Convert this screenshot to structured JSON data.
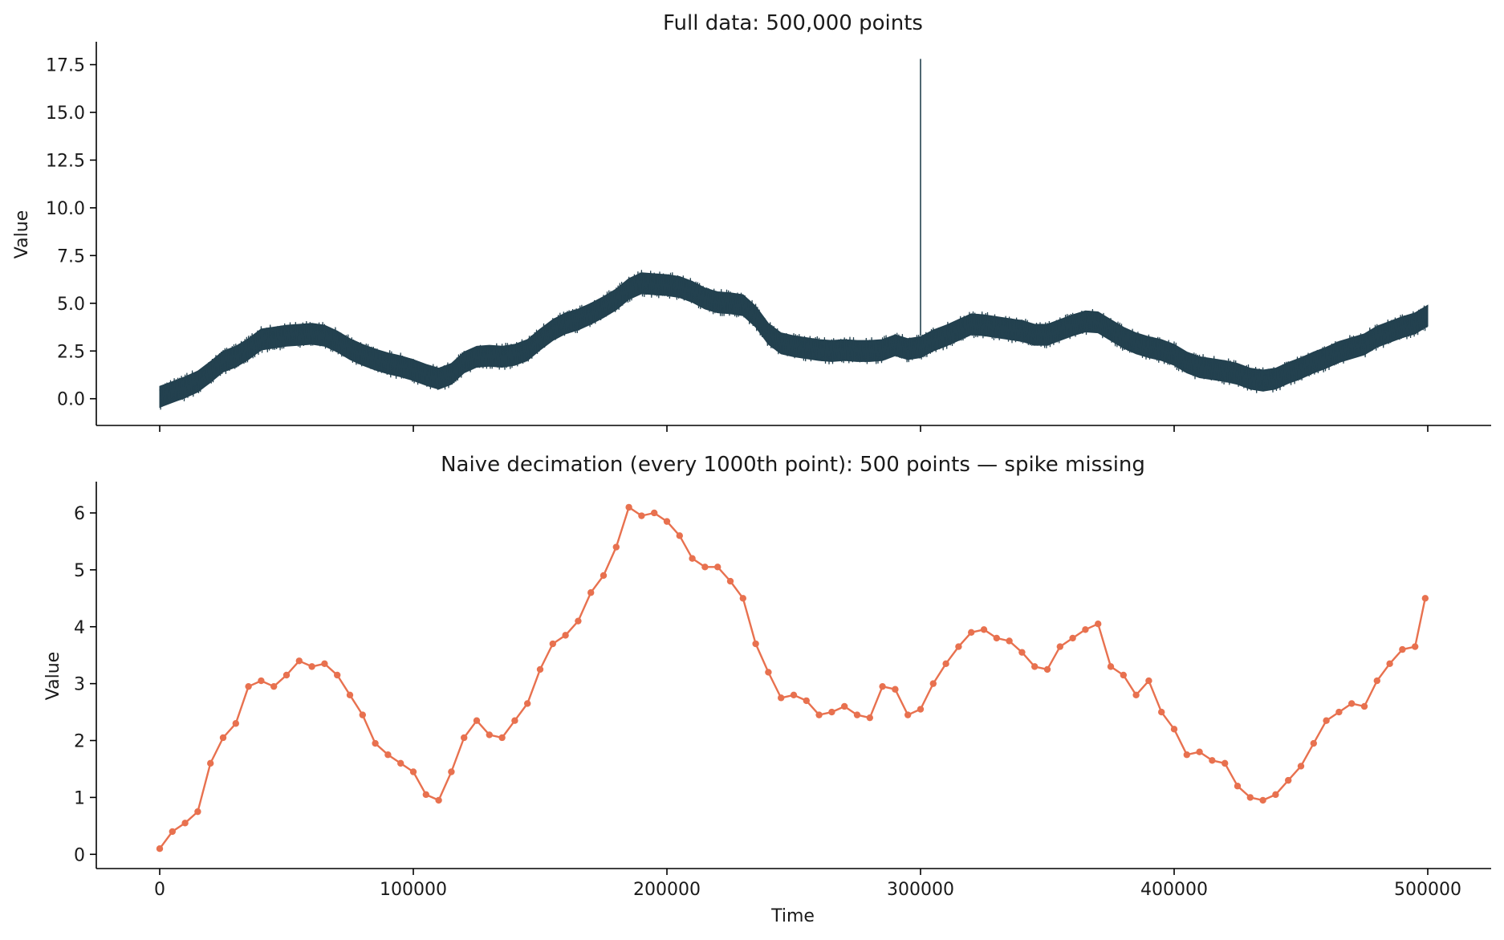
{
  "chart_data": [
    {
      "type": "line",
      "title": "Full data: 500,000 points",
      "xlabel": "",
      "ylabel": "Value",
      "xlim": [
        -25000,
        525000
      ],
      "ylim": [
        -1.4,
        18.7
      ],
      "yticks": [
        0.0,
        2.5,
        5.0,
        7.5,
        10.0,
        12.5,
        15.0,
        17.5
      ],
      "ytick_labels": [
        "0.0",
        "2.5",
        "5.0",
        "7.5",
        "10.0",
        "12.5",
        "15.0",
        "17.5"
      ],
      "xticks": [
        0,
        100000,
        200000,
        300000,
        400000,
        500000
      ],
      "xtick_labels": [
        "",
        "",
        "",
        "",
        "",
        ""
      ],
      "grid": false,
      "color": "#23414f",
      "series": [
        {
          "x": [
            0,
            5000,
            10000,
            15000,
            20000,
            25000,
            30000,
            35000,
            40000,
            45000,
            50000,
            55000,
            60000,
            65000,
            70000,
            75000,
            80000,
            85000,
            90000,
            95000,
            100000,
            105000,
            110000,
            115000,
            120000,
            125000,
            130000,
            135000,
            140000,
            145000,
            150000,
            155000,
            160000,
            165000,
            170000,
            175000,
            180000,
            185000,
            190000,
            195000,
            200000,
            205000,
            210000,
            215000,
            220000,
            225000,
            230000,
            235000,
            240000,
            245000,
            250000,
            255000,
            260000,
            265000,
            270000,
            275000,
            280000,
            285000,
            290000,
            295000,
            300000,
            305000,
            310000,
            315000,
            320000,
            325000,
            330000,
            335000,
            340000,
            345000,
            350000,
            355000,
            360000,
            365000,
            370000,
            375000,
            380000,
            385000,
            390000,
            395000,
            400000,
            405000,
            410000,
            415000,
            420000,
            425000,
            430000,
            435000,
            440000,
            445000,
            450000,
            455000,
            460000,
            465000,
            470000,
            475000,
            480000,
            485000,
            490000,
            495000,
            499999
          ],
          "y": [
            0.1,
            0.35,
            0.6,
            0.9,
            1.4,
            1.95,
            2.2,
            2.6,
            3.1,
            3.2,
            3.3,
            3.35,
            3.4,
            3.3,
            3.0,
            2.6,
            2.3,
            2.05,
            1.85,
            1.7,
            1.5,
            1.25,
            1.05,
            1.3,
            1.9,
            2.2,
            2.25,
            2.2,
            2.3,
            2.55,
            3.1,
            3.6,
            3.95,
            4.15,
            4.45,
            4.8,
            5.2,
            5.75,
            6.05,
            6.0,
            5.95,
            5.85,
            5.6,
            5.25,
            5.05,
            5.0,
            4.9,
            4.3,
            3.4,
            2.9,
            2.75,
            2.65,
            2.55,
            2.5,
            2.55,
            2.5,
            2.5,
            2.55,
            2.8,
            2.6,
            2.7,
            3.05,
            3.3,
            3.6,
            3.9,
            3.85,
            3.75,
            3.65,
            3.55,
            3.35,
            3.35,
            3.6,
            3.85,
            4.05,
            4.0,
            3.6,
            3.2,
            2.9,
            2.7,
            2.55,
            2.3,
            1.9,
            1.65,
            1.55,
            1.45,
            1.3,
            1.05,
            0.95,
            1.05,
            1.35,
            1.6,
            1.9,
            2.15,
            2.45,
            2.65,
            2.85,
            3.25,
            3.5,
            3.75,
            3.95,
            4.35
          ],
          "band": 0.55,
          "spike": {
            "x": 300000,
            "y_from": 3.3,
            "y_to": 17.8
          }
        }
      ]
    },
    {
      "type": "line",
      "title": "Naive decimation (every 1000th point): 500 points — spike missing",
      "xlabel": "Time",
      "ylabel": "Value",
      "xlim": [
        -25000,
        525000
      ],
      "ylim": [
        -0.25,
        6.55
      ],
      "yticks": [
        0,
        1,
        2,
        3,
        4,
        5,
        6
      ],
      "ytick_labels": [
        "0",
        "1",
        "2",
        "3",
        "4",
        "5",
        "6"
      ],
      "xticks": [
        0,
        100000,
        200000,
        300000,
        400000,
        500000
      ],
      "xtick_labels": [
        "0",
        "100000",
        "200000",
        "300000",
        "400000",
        "500000"
      ],
      "grid": false,
      "color": "#e8714f",
      "markers": true,
      "series": [
        {
          "x": [
            0,
            5000,
            10000,
            15000,
            20000,
            25000,
            30000,
            35000,
            40000,
            45000,
            50000,
            55000,
            60000,
            65000,
            70000,
            75000,
            80000,
            85000,
            90000,
            95000,
            100000,
            105000,
            110000,
            115000,
            120000,
            125000,
            130000,
            135000,
            140000,
            145000,
            150000,
            155000,
            160000,
            165000,
            170000,
            175000,
            180000,
            185000,
            190000,
            195000,
            200000,
            205000,
            210000,
            215000,
            220000,
            225000,
            230000,
            235000,
            240000,
            245000,
            250000,
            255000,
            260000,
            265000,
            270000,
            275000,
            280000,
            285000,
            290000,
            295000,
            300000,
            305000,
            310000,
            315000,
            320000,
            325000,
            330000,
            335000,
            340000,
            345000,
            350000,
            355000,
            360000,
            365000,
            370000,
            375000,
            380000,
            385000,
            390000,
            395000,
            400000,
            405000,
            410000,
            415000,
            420000,
            425000,
            430000,
            435000,
            440000,
            445000,
            450000,
            455000,
            460000,
            465000,
            470000,
            475000,
            480000,
            485000,
            490000,
            495000,
            499000
          ],
          "y": [
            0.1,
            0.4,
            0.55,
            0.75,
            1.6,
            2.05,
            2.3,
            2.95,
            3.05,
            2.95,
            3.15,
            3.4,
            3.3,
            3.35,
            3.15,
            2.8,
            2.45,
            1.95,
            1.75,
            1.6,
            1.45,
            1.05,
            0.95,
            1.45,
            2.05,
            2.35,
            2.1,
            2.05,
            2.35,
            2.65,
            3.25,
            3.7,
            3.85,
            4.1,
            4.6,
            4.9,
            5.4,
            6.1,
            5.95,
            6.0,
            5.85,
            5.6,
            5.2,
            5.05,
            5.05,
            4.8,
            4.5,
            3.7,
            3.2,
            2.75,
            2.8,
            2.7,
            2.45,
            2.5,
            2.6,
            2.45,
            2.4,
            2.95,
            2.9,
            2.45,
            2.55,
            3.0,
            3.35,
            3.65,
            3.9,
            3.95,
            3.8,
            3.75,
            3.55,
            3.3,
            3.25,
            3.65,
            3.8,
            3.95,
            4.05,
            3.3,
            3.15,
            2.8,
            3.05,
            2.5,
            2.2,
            1.75,
            1.8,
            1.65,
            1.6,
            1.2,
            1.0,
            0.95,
            1.05,
            1.3,
            1.55,
            1.95,
            2.35,
            2.5,
            2.65,
            2.6,
            3.05,
            3.35,
            3.6,
            3.65,
            4.5
          ]
        }
      ]
    }
  ]
}
